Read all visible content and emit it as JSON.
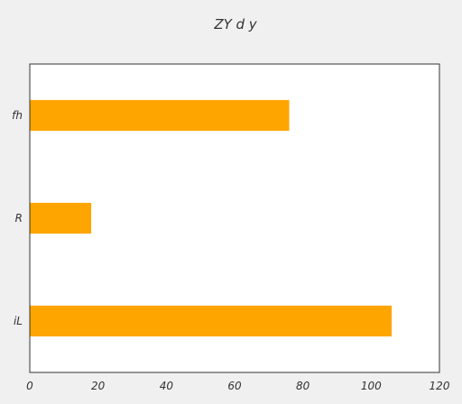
{
  "chart_data": {
    "type": "bar",
    "orientation": "horizontal",
    "title": "ZY d y",
    "xlabel": "",
    "ylabel": "",
    "categories": [
      "iL",
      "R",
      "fh"
    ],
    "values": [
      106,
      18,
      76
    ],
    "xlim": [
      0,
      120
    ],
    "xticks": [
      0,
      20,
      40,
      60,
      80,
      100,
      120
    ],
    "grid": false,
    "bar_color": "#ffa500",
    "background_color": "#f0f0f0",
    "plot_background_color": "#ffffff"
  }
}
